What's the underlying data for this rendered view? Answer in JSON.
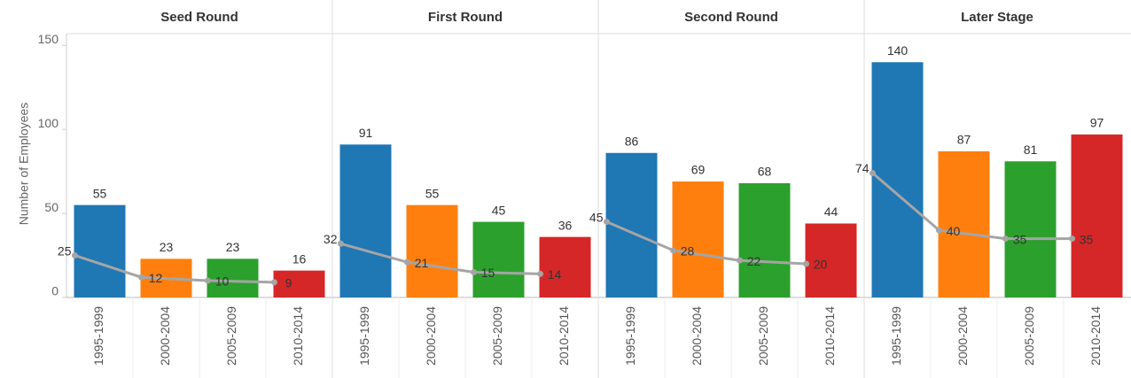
{
  "chart_data": [
    {
      "type": "bar",
      "title": "Seed Round",
      "ylabel": "Number of Employees",
      "ylim": [
        0,
        157
      ],
      "yticks": [
        0,
        50,
        100,
        150
      ],
      "categories": [
        "1995-1999",
        "2000-2004",
        "2005-2009",
        "2010-2014"
      ],
      "series": [
        {
          "type": "bar",
          "colors": [
            "#1f77b4",
            "#ff7f0e",
            "#2ca02c",
            "#d62728"
          ],
          "values": [
            55,
            23,
            23,
            16
          ]
        },
        {
          "type": "line",
          "color": "#a5a5a5",
          "values": [
            25,
            12,
            10,
            9
          ]
        }
      ]
    },
    {
      "type": "bar",
      "title": "First Round",
      "categories": [
        "1995-1999",
        "2000-2004",
        "2005-2009",
        "2010-2014"
      ],
      "series": [
        {
          "type": "bar",
          "colors": [
            "#1f77b4",
            "#ff7f0e",
            "#2ca02c",
            "#d62728"
          ],
          "values": [
            91,
            55,
            45,
            36
          ]
        },
        {
          "type": "line",
          "color": "#a5a5a5",
          "values": [
            32,
            21,
            15,
            14
          ]
        }
      ]
    },
    {
      "type": "bar",
      "title": "Second Round",
      "categories": [
        "1995-1999",
        "2000-2004",
        "2005-2009",
        "2010-2014"
      ],
      "series": [
        {
          "type": "bar",
          "colors": [
            "#1f77b4",
            "#ff7f0e",
            "#2ca02c",
            "#d62728"
          ],
          "values": [
            86,
            69,
            68,
            44
          ]
        },
        {
          "type": "line",
          "color": "#a5a5a5",
          "values": [
            45,
            28,
            22,
            20
          ]
        }
      ]
    },
    {
      "type": "bar",
      "title": "Later Stage",
      "categories": [
        "1995-1999",
        "2000-2004",
        "2005-2009",
        "2010-2014"
      ],
      "series": [
        {
          "type": "bar",
          "colors": [
            "#1f77b4",
            "#ff7f0e",
            "#2ca02c",
            "#d62728"
          ],
          "values": [
            140,
            87,
            81,
            97
          ]
        },
        {
          "type": "line",
          "color": "#a5a5a5",
          "values": [
            74,
            40,
            35,
            35
          ]
        }
      ]
    }
  ]
}
